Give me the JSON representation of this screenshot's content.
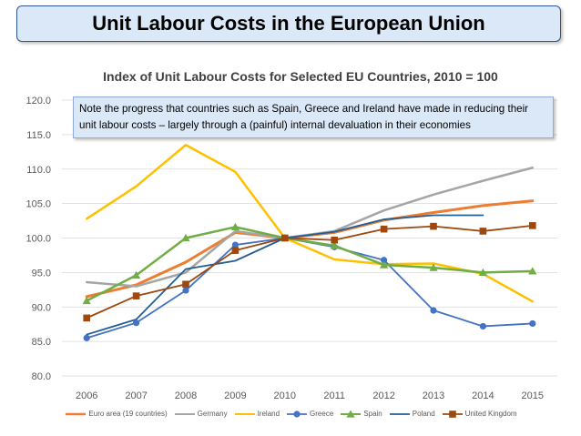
{
  "slide": {
    "title": "Unit Labour Costs in the European Union",
    "note": "Note the progress that countries such as Spain, Greece and Ireland have made in reducing their unit labour costs – largely through a (painful) internal devaluation in their economies"
  },
  "chart_data": {
    "type": "line",
    "title": "Index of Unit Labour Costs for Selected EU Countries, 2010 = 100",
    "xlabel": "",
    "ylabel": "",
    "categories": [
      "2006",
      "2007",
      "2008",
      "2009",
      "2010",
      "2011",
      "2012",
      "2013",
      "2014",
      "2015"
    ],
    "ylim": [
      80,
      120
    ],
    "yticks": [
      "80.0",
      "85.0",
      "90.0",
      "95.0",
      "100.0",
      "105.0",
      "110.0",
      "115.0",
      "120.0"
    ],
    "grid": true,
    "legend_position": "bottom",
    "series": [
      {
        "name": "Euro area (19 countries)",
        "color": "#ed7d31",
        "marker": "none",
        "width": 3,
        "values": [
          91.5,
          93.2,
          96.5,
          100.8,
          100.0,
          100.8,
          102.6,
          103.7,
          104.7,
          105.4
        ]
      },
      {
        "name": "Germany",
        "color": "#a5a5a5",
        "marker": "none",
        "width": 2.5,
        "values": [
          93.6,
          93.0,
          95.0,
          101.0,
          100.0,
          101.0,
          104.0,
          106.3,
          108.3,
          110.2
        ]
      },
      {
        "name": "Ireland",
        "color": "#ffc000",
        "marker": "none",
        "width": 2.5,
        "values": [
          102.8,
          107.5,
          113.5,
          109.6,
          100.0,
          96.9,
          96.2,
          96.3,
          94.8,
          90.8
        ]
      },
      {
        "name": "Greece",
        "color": "#4472c4",
        "marker": "circle",
        "width": 1.8,
        "values": [
          85.5,
          87.7,
          92.4,
          99.0,
          100.0,
          98.7,
          96.8,
          89.5,
          87.2,
          87.6
        ]
      },
      {
        "name": "Spain",
        "color": "#70ad47",
        "marker": "triangle",
        "width": 2.5,
        "values": [
          90.9,
          94.6,
          100.0,
          101.6,
          100.0,
          98.9,
          96.1,
          95.7,
          95.0,
          95.2
        ]
      },
      {
        "name": "Poland",
        "color": "#255e91",
        "marker": "none",
        "width": 1.8,
        "values": [
          86.0,
          88.2,
          95.5,
          96.7,
          100.0,
          100.9,
          102.7,
          103.3,
          103.3,
          null
        ]
      },
      {
        "name": "United Kingdom",
        "color": "#9e480e",
        "marker": "square",
        "width": 1.8,
        "values": [
          88.4,
          91.6,
          93.3,
          98.2,
          100.0,
          99.7,
          101.3,
          101.7,
          101.0,
          101.8
        ]
      }
    ]
  }
}
